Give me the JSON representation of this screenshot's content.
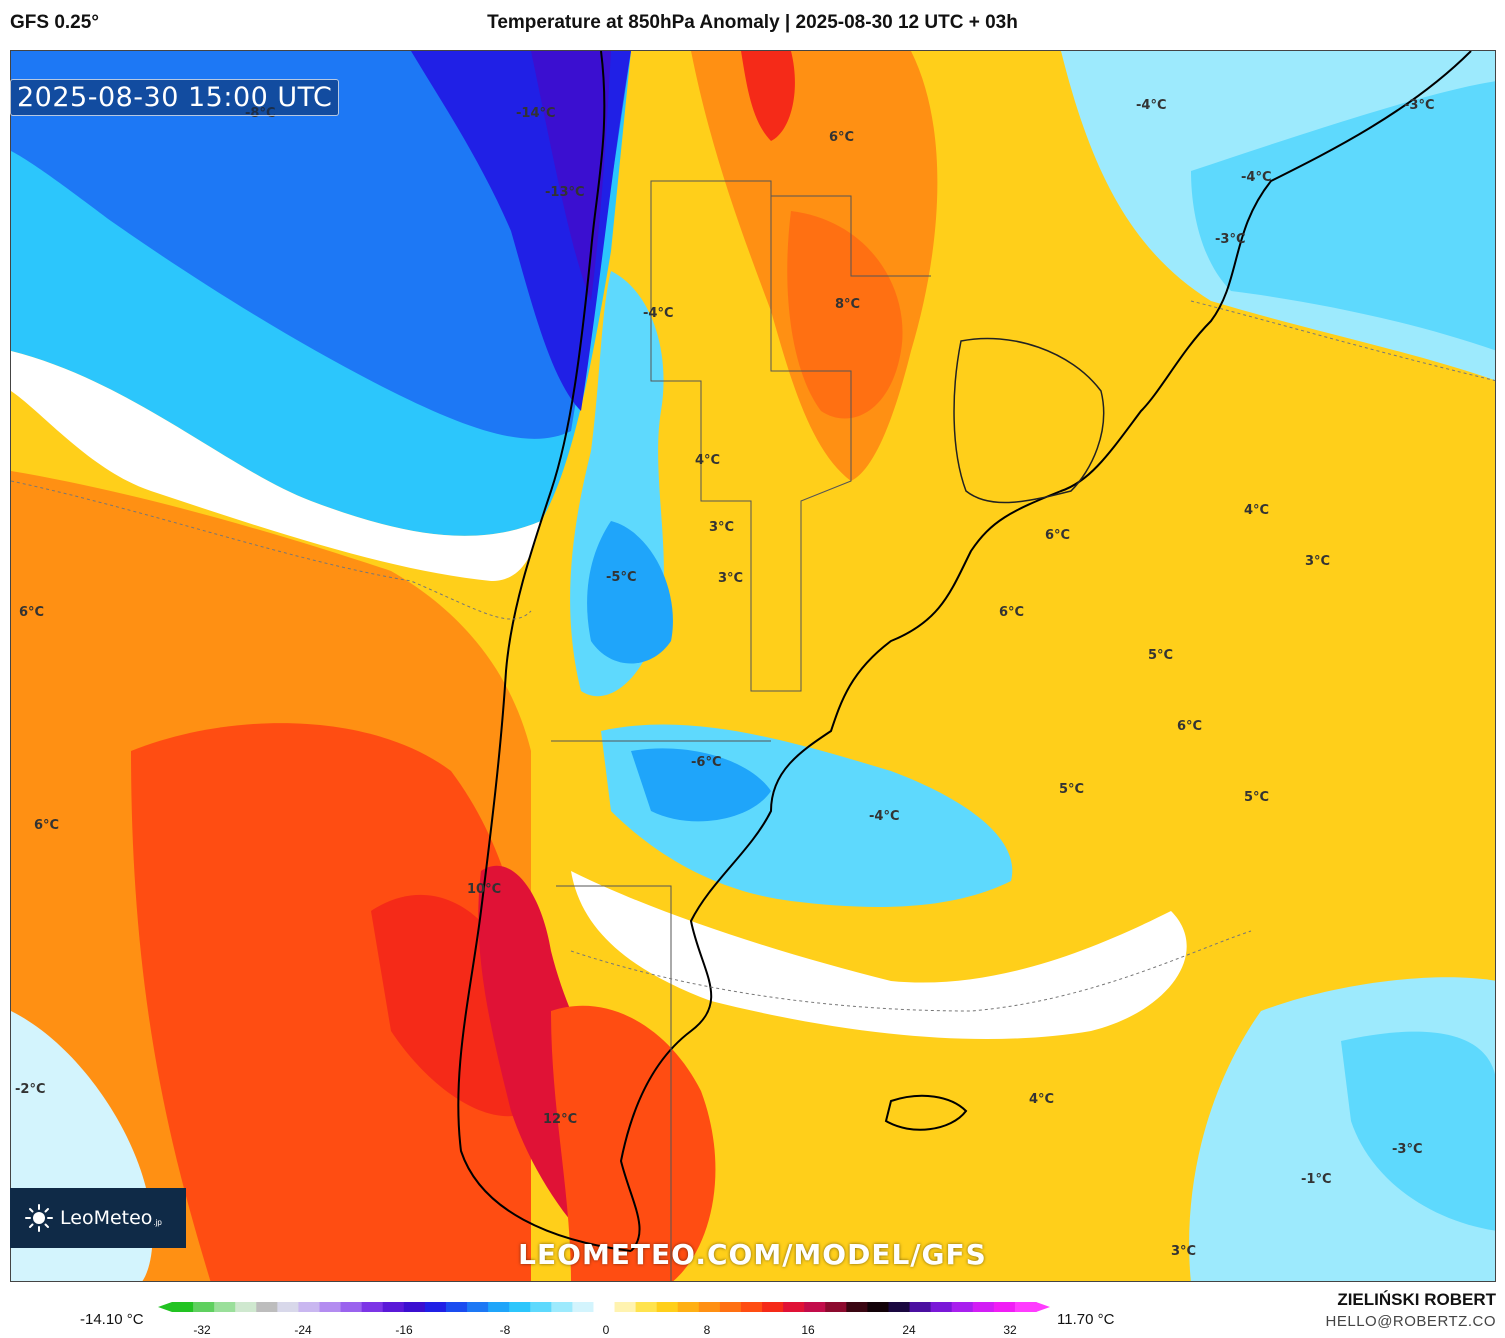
{
  "header": {
    "model": "GFS 0.25°",
    "title": "Temperature at 850hPa Anomaly | 2025-08-30 12 UTC + 03h"
  },
  "map": {
    "valid_time": "2025-08-30 15:00 UTC",
    "labels": [
      {
        "text": "-8°C"
      },
      {
        "text": "-14°C"
      },
      {
        "text": "-13°C"
      },
      {
        "text": "6°C"
      },
      {
        "text": "8°C"
      },
      {
        "text": "-4°C"
      },
      {
        "text": "-4°C"
      },
      {
        "text": "-3°C"
      },
      {
        "text": "-3°C"
      },
      {
        "text": "-4°C"
      },
      {
        "text": "4°C"
      },
      {
        "text": "3°C"
      },
      {
        "text": "-5°C"
      },
      {
        "text": "3°C"
      },
      {
        "text": "6°C"
      },
      {
        "text": "6°C"
      },
      {
        "text": "4°C"
      },
      {
        "text": "3°C"
      },
      {
        "text": "6°C"
      },
      {
        "text": "5°C"
      },
      {
        "text": "6°C"
      },
      {
        "text": "-6°C"
      },
      {
        "text": "5°C"
      },
      {
        "text": "5°C"
      },
      {
        "text": "-4°C"
      },
      {
        "text": "6°C"
      },
      {
        "text": "10°C"
      },
      {
        "text": "-2°C"
      },
      {
        "text": "4°C"
      },
      {
        "text": "12°C"
      },
      {
        "text": "-3°C"
      },
      {
        "text": "-1°C"
      },
      {
        "text": "3°C"
      }
    ],
    "watermark": "LEOMETEO.COM/MODEL/GFS",
    "logo": {
      "name": "LeoMeteo",
      "suffix": ".jp"
    }
  },
  "colorbar": {
    "min_label": "-14.10 °C",
    "max_label": "11.70 °C",
    "ticks": [
      "-32",
      "-24",
      "-16",
      "-8",
      "0",
      "8",
      "16",
      "24",
      "32"
    ],
    "colors": [
      "#22c322",
      "#5fd05f",
      "#9adf9a",
      "#cfe8cf",
      "#bdbdbd",
      "#d8d8ea",
      "#c9b7f0",
      "#b38cf0",
      "#9a63ee",
      "#7c35e6",
      "#5a19d8",
      "#3b0fd0",
      "#2020e6",
      "#1a4cf0",
      "#1d78f5",
      "#1fa5fa",
      "#2cc6fc",
      "#5ed9fd",
      "#9deafd",
      "#d3f4fd",
      "#ffffff",
      "#fff3b0",
      "#ffe34d",
      "#ffcf1a",
      "#ffb014",
      "#ff9013",
      "#ff7012",
      "#ff4d12",
      "#f52a18",
      "#e01236",
      "#c20c4a",
      "#8c0a2e",
      "#3a0612",
      "#120208",
      "#1a0840",
      "#4a0fa0",
      "#7a18d8",
      "#a820ee",
      "#d21ef5",
      "#f01ef5",
      "#ff3cff"
    ],
    "colors_note": "anomaly color scale"
  },
  "credits": {
    "author": "ZIELIŃSKI ROBERT",
    "email": "HELLO@ROBERTZ.CO"
  }
}
